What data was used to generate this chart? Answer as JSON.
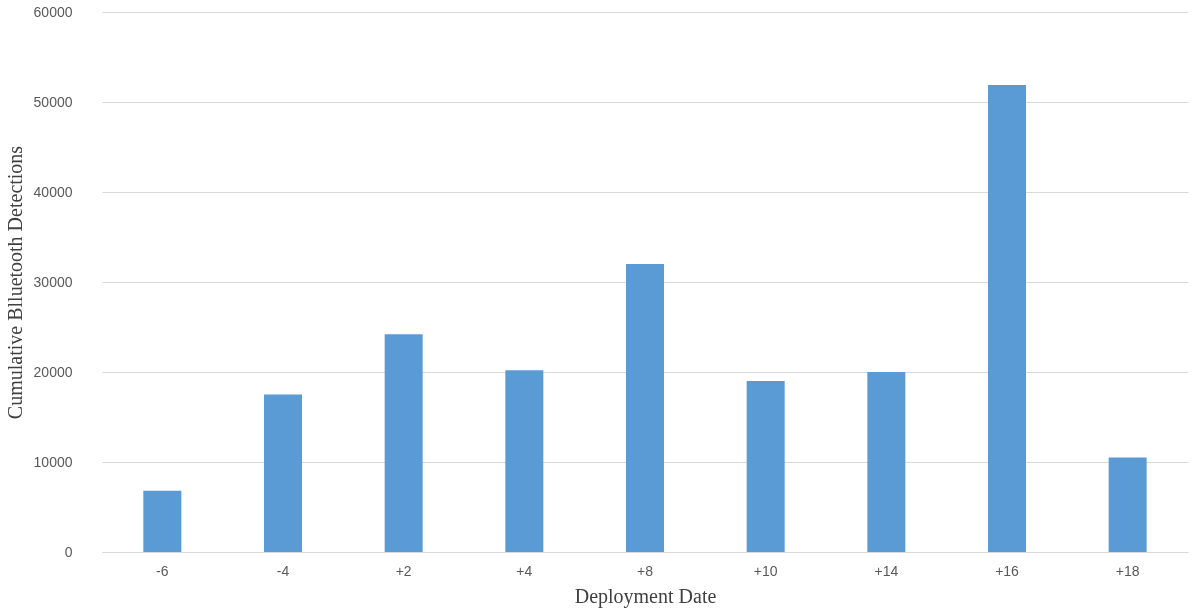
{
  "chart_data": {
    "type": "bar",
    "xlabel": "Deployment Date",
    "ylabel": "Cumulative Blluetooth Detections",
    "categories": [
      "-6",
      "-4",
      "+2",
      "+4",
      "+8",
      "+10",
      "+14",
      "+16",
      "+18"
    ],
    "series": [
      {
        "color": "#5b9bd5",
        "values": [
          6800,
          17500,
          24200,
          20200,
          32000,
          19000,
          20000,
          51900,
          10500
        ]
      }
    ],
    "ylim": [
      0,
      60000
    ],
    "yticks": [
      0,
      10000,
      20000,
      30000,
      40000,
      50000,
      60000
    ],
    "grid": "y",
    "legend": false
  }
}
